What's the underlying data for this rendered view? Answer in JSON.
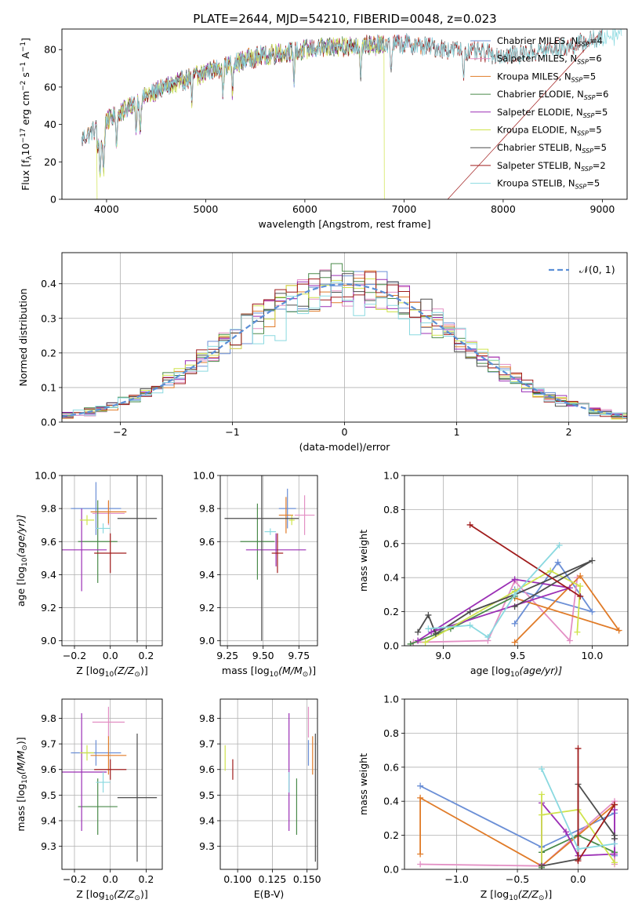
{
  "title": "PLATE=2644, MJD=54210, FIBERID=0048, z=0.023",
  "colors": {
    "Chabrier MILES": "#6b8fd6",
    "Salpeter MILES": "#e38fc4",
    "Kroupa MILES": "#e07b28",
    "Chabrier ELODIE": "#4a8a4a",
    "Salpeter ELODIE": "#9b2fb5",
    "Kroupa ELODIE": "#cfe34c",
    "Chabrier STELIB": "#4d4d4d",
    "Salpeter STELIB": "#a01c1c",
    "Kroupa STELIB": "#8ad9e0"
  },
  "chart_data": [
    {
      "id": "spectrum",
      "type": "line",
      "xlabel": "wavelength [Angstrom, rest frame]",
      "ylabel_parts": [
        "Flux [f",
        "λ",
        "10",
        "−17",
        " erg cm",
        "−2",
        " s",
        "−1",
        " A",
        "−1",
        "]"
      ],
      "xlim": [
        3550,
        9250
      ],
      "ylim": [
        0,
        91
      ],
      "xticks": [
        4000,
        5000,
        6000,
        7000,
        8000,
        9000
      ],
      "yticks": [
        0,
        20,
        40,
        60,
        80
      ],
      "grid": false,
      "legend_position": "upper right",
      "legend": [
        {
          "model": "Chabrier MILES",
          "n": 4
        },
        {
          "model": "Salpeter MILES",
          "n": 6
        },
        {
          "model": "Kroupa MILES",
          "n": 5
        },
        {
          "model": "Chabrier ELODIE",
          "n": 6
        },
        {
          "model": "Salpeter ELODIE",
          "n": 5
        },
        {
          "model": "Kroupa ELODIE",
          "n": 5
        },
        {
          "model": "Chabrier STELIB",
          "n": 5
        },
        {
          "model": "Salpeter STELIB",
          "n": 2
        },
        {
          "model": "Kroupa STELIB",
          "n": 5
        }
      ],
      "series_range": [
        {
          "model": "Chabrier MILES",
          "x": [
            3750,
            7450
          ]
        },
        {
          "model": "Salpeter MILES",
          "x": [
            3750,
            7450
          ]
        },
        {
          "model": "Kroupa MILES",
          "x": [
            3750,
            7450
          ]
        },
        {
          "model": "Chabrier ELODIE",
          "x": [
            3900,
            6800
          ]
        },
        {
          "model": "Salpeter ELODIE",
          "x": [
            3900,
            6800
          ]
        },
        {
          "model": "Kroupa ELODIE",
          "x": [
            3900,
            6800
          ]
        },
        {
          "model": "Chabrier STELIB",
          "x": [
            3750,
            9000
          ]
        },
        {
          "model": "Salpeter STELIB",
          "x": [
            3750,
            9000
          ]
        },
        {
          "model": "Kroupa STELIB",
          "x": [
            3750,
            9200
          ]
        }
      ],
      "continuum_anchors": {
        "x": [
          3750,
          4000,
          4500,
          5000,
          5500,
          6000,
          6500,
          7000,
          7500,
          8000,
          8500,
          9000,
          9250
        ],
        "y": [
          32,
          42,
          58,
          68,
          76,
          80,
          82,
          83,
          80,
          77,
          80,
          86,
          90
        ]
      }
    },
    {
      "id": "residuals",
      "type": "step",
      "xlabel": "(data-model)/error",
      "ylabel": "Normed distribution",
      "xlim": [
        -2.52,
        2.52
      ],
      "ylim": [
        0,
        0.49
      ],
      "xticks": [
        -2,
        -1,
        0,
        1,
        2
      ],
      "yticks": [
        0.0,
        0.1,
        0.2,
        0.3,
        0.4
      ],
      "grid": true,
      "legend_position": "upper right",
      "legend_label": "𝒩(0, 1)",
      "reference_curve": {
        "type": "gaussian",
        "mean": 0,
        "sigma": 1
      },
      "bin_width": 0.1
    },
    {
      "id": "age-vs-Z",
      "type": "errorbar",
      "xlabel_parts": [
        "Z [log",
        "10",
        "(Z/Z",
        "⊙",
        ")]"
      ],
      "ylabel_parts": [
        "age  [log",
        "10",
        "(age/yr)]"
      ],
      "xlim": [
        -0.27,
        0.29
      ],
      "ylim": [
        8.97,
        10.0
      ],
      "xticks": [
        -0.2,
        0.0,
        0.2
      ],
      "yticks": [
        9.0,
        9.2,
        9.4,
        9.6,
        9.8,
        10.0
      ],
      "grid": true,
      "points": [
        {
          "model": "Chabrier MILES",
          "x": -0.08,
          "y": 9.8,
          "xerr": 0.14,
          "yerr": 0.16
        },
        {
          "model": "Salpeter MILES",
          "x": -0.01,
          "y": 9.77,
          "xerr": 0.09,
          "yerr": 0.07
        },
        {
          "model": "Kroupa MILES",
          "x": -0.01,
          "y": 9.78,
          "xerr": 0.1,
          "yerr": 0.07
        },
        {
          "model": "Chabrier ELODIE",
          "x": -0.07,
          "y": 9.6,
          "xerr": 0.11,
          "yerr": 0.25
        },
        {
          "model": "Salpeter ELODIE",
          "x": -0.16,
          "y": 9.55,
          "xerr": 0.14,
          "yerr": 0.25
        },
        {
          "model": "Kroupa ELODIE",
          "x": -0.13,
          "y": 9.73,
          "xerr": 0.04,
          "yerr": 0.03
        },
        {
          "model": "Chabrier STELIB",
          "x": 0.15,
          "y": 9.74,
          "xerr": 0.11,
          "yerr": 0.75
        },
        {
          "model": "Salpeter STELIB",
          "x": 0.0,
          "y": 9.53,
          "xerr": 0.09,
          "yerr": 0.12
        },
        {
          "model": "Kroupa STELIB",
          "x": -0.04,
          "y": 9.68,
          "xerr": 0.04,
          "yerr": 0.03
        }
      ]
    },
    {
      "id": "age-vs-mass",
      "type": "errorbar",
      "xlabel_parts": [
        "mass [log",
        "10",
        "(M/M",
        "⊙",
        ")]"
      ],
      "ylabel": "",
      "xlim": [
        9.2,
        9.88
      ],
      "ylim": [
        8.97,
        10.0
      ],
      "xticks": [
        9.25,
        9.5,
        9.75
      ],
      "yticks": [
        9.0,
        9.2,
        9.4,
        9.6,
        9.8,
        10.0
      ],
      "grid": true,
      "points": [
        {
          "model": "Chabrier MILES",
          "x": 9.67,
          "y": 9.8,
          "xerr": 0.06,
          "yerr": 0.12
        },
        {
          "model": "Salpeter MILES",
          "x": 9.79,
          "y": 9.76,
          "xerr": 0.07,
          "yerr": 0.12
        },
        {
          "model": "Kroupa MILES",
          "x": 9.66,
          "y": 9.76,
          "xerr": 0.05,
          "yerr": 0.11
        },
        {
          "model": "Chabrier ELODIE",
          "x": 9.46,
          "y": 9.6,
          "xerr": 0.12,
          "yerr": 0.23
        },
        {
          "model": "Salpeter ELODIE",
          "x": 9.59,
          "y": 9.55,
          "xerr": 0.21,
          "yerr": 0.1
        },
        {
          "model": "Kroupa ELODIE",
          "x": 9.7,
          "y": 9.73,
          "xerr": 0.02,
          "yerr": 0.03
        },
        {
          "model": "Chabrier STELIB",
          "x": 9.49,
          "y": 9.74,
          "xerr": 0.26,
          "yerr": 0.74
        },
        {
          "model": "Salpeter STELIB",
          "x": 9.6,
          "y": 9.53,
          "xerr": 0.04,
          "yerr": 0.12
        },
        {
          "model": "Kroupa STELIB",
          "x": 9.55,
          "y": 9.66,
          "xerr": 0.04,
          "yerr": 0.02
        }
      ]
    },
    {
      "id": "mass-weight-vs-age",
      "type": "line",
      "xlabel_parts": [
        "age  [log",
        "10",
        "(age/yr)]"
      ],
      "ylabel": "mass weight",
      "xlim": [
        8.74,
        10.24
      ],
      "ylim": [
        0,
        1.0
      ],
      "xticks": [
        9.0,
        9.5,
        10.0
      ],
      "yticks": [
        0.0,
        0.2,
        0.4,
        0.6,
        0.8,
        1.0
      ],
      "grid": true,
      "series": [
        {
          "model": "Chabrier MILES",
          "x": [
            9.48,
            9.77,
            10.0,
            9.48
          ],
          "y": [
            0.13,
            0.49,
            0.2,
            0.33
          ]
        },
        {
          "model": "Salpeter MILES",
          "x": [
            8.8,
            9.3,
            9.48,
            9.85,
            9.9
          ],
          "y": [
            0.02,
            0.03,
            0.38,
            0.03,
            0.4
          ]
        },
        {
          "model": "Kroupa MILES",
          "x": [
            9.48,
            9.92,
            10.18,
            9.48
          ],
          "y": [
            0.02,
            0.41,
            0.09,
            0.28
          ]
        },
        {
          "model": "Chabrier ELODIE",
          "x": [
            8.78,
            9.05,
            9.48
          ],
          "y": [
            0.01,
            0.1,
            0.29
          ]
        },
        {
          "model": "Salpeter ELODIE",
          "x": [
            8.83,
            9.48,
            9.85,
            8.92
          ],
          "y": [
            0.03,
            0.39,
            0.34,
            0.08
          ]
        },
        {
          "model": "Kroupa ELODIE",
          "x": [
            8.88,
            9.48,
            9.72,
            9.92,
            9.9
          ],
          "y": [
            0.02,
            0.32,
            0.44,
            0.35,
            0.08
          ]
        },
        {
          "model": "Chabrier STELIB",
          "x": [
            8.83,
            8.9,
            8.95,
            9.18,
            9.48,
            10.0,
            9.48
          ],
          "y": [
            0.08,
            0.18,
            0.07,
            0.2,
            0.3,
            0.5,
            0.23
          ]
        },
        {
          "model": "Salpeter STELIB",
          "x": [
            9.18,
            9.92
          ],
          "y": [
            0.71,
            0.29
          ]
        },
        {
          "model": "Kroupa STELIB",
          "x": [
            8.9,
            9.18,
            9.3,
            9.48,
            9.78
          ],
          "y": [
            0.1,
            0.12,
            0.05,
            0.3,
            0.59
          ]
        }
      ]
    },
    {
      "id": "mass-vs-Z",
      "type": "errorbar",
      "xlabel_parts": [
        "Z [log",
        "10",
        "(Z/Z",
        "⊙",
        ")]"
      ],
      "ylabel_parts": [
        "mass [log",
        "10",
        "(M/M",
        "⊙",
        ")]"
      ],
      "xlim": [
        -0.27,
        0.29
      ],
      "ylim": [
        9.21,
        9.875
      ],
      "xticks": [
        -0.2,
        0.0,
        0.2
      ],
      "yticks": [
        9.3,
        9.4,
        9.5,
        9.6,
        9.7,
        9.8
      ],
      "grid": true,
      "points": [
        {
          "model": "Chabrier MILES",
          "x": -0.08,
          "y": 9.665,
          "xerr": 0.14,
          "yerr": 0.05
        },
        {
          "model": "Salpeter MILES",
          "x": -0.01,
          "y": 9.785,
          "xerr": 0.09,
          "yerr": 0.06
        },
        {
          "model": "Kroupa MILES",
          "x": -0.01,
          "y": 9.655,
          "xerr": 0.1,
          "yerr": 0.075
        },
        {
          "model": "Chabrier ELODIE",
          "x": -0.07,
          "y": 9.455,
          "xerr": 0.11,
          "yerr": 0.11
        },
        {
          "model": "Salpeter ELODIE",
          "x": -0.16,
          "y": 9.59,
          "xerr": 0.14,
          "yerr": 0.23
        },
        {
          "model": "Kroupa ELODIE",
          "x": -0.13,
          "y": 9.665,
          "xerr": 0.04,
          "yerr": 0.03
        },
        {
          "model": "Chabrier STELIB",
          "x": 0.15,
          "y": 9.49,
          "xerr": 0.11,
          "yerr": 0.25
        },
        {
          "model": "Salpeter STELIB",
          "x": 0.0,
          "y": 9.6,
          "xerr": 0.09,
          "yerr": 0.04
        },
        {
          "model": "Kroupa STELIB",
          "x": -0.04,
          "y": 9.55,
          "xerr": 0.04,
          "yerr": 0.04
        }
      ]
    },
    {
      "id": "mass-vs-EBV",
      "type": "errorbar",
      "xlabel": "E(B-V)",
      "ylabel": "",
      "xlim": [
        0.0875,
        0.1575
      ],
      "ylim": [
        9.21,
        9.875
      ],
      "xticks": [
        0.1,
        0.125,
        0.15
      ],
      "yticks": [
        9.3,
        9.4,
        9.5,
        9.6,
        9.7,
        9.8
      ],
      "grid": true,
      "points": [
        {
          "model": "Chabrier MILES",
          "x": 0.151,
          "y": 9.665,
          "yerr": 0.05
        },
        {
          "model": "Salpeter MILES",
          "x": 0.151,
          "y": 9.785,
          "yerr": 0.06
        },
        {
          "model": "Kroupa MILES",
          "x": 0.154,
          "y": 9.655,
          "yerr": 0.075
        },
        {
          "model": "Chabrier ELODIE",
          "x": 0.1425,
          "y": 9.455,
          "yerr": 0.11
        },
        {
          "model": "Salpeter ELODIE",
          "x": 0.137,
          "y": 9.59,
          "yerr": 0.23
        },
        {
          "model": "Kroupa ELODIE",
          "x": 0.091,
          "y": 9.645,
          "yerr": 0.05
        },
        {
          "model": "Chabrier STELIB",
          "x": 0.156,
          "y": 9.49,
          "yerr": 0.25
        },
        {
          "model": "Salpeter STELIB",
          "x": 0.0965,
          "y": 9.6,
          "yerr": 0.04
        },
        {
          "model": "Kroupa STELIB",
          "x": 0.137,
          "y": 9.55,
          "yerr": 0.04
        }
      ]
    },
    {
      "id": "mass-weight-vs-Z",
      "type": "line",
      "xlabel_parts": [
        "Z [log",
        "10",
        "(Z/Z",
        "⊙",
        ")]"
      ],
      "ylabel": "mass weight",
      "xlim": [
        -1.43,
        0.41
      ],
      "ylim": [
        0,
        1.0
      ],
      "xticks": [
        -1.0,
        -0.5,
        0.0
      ],
      "yticks": [
        0.0,
        0.2,
        0.4,
        0.6,
        0.8,
        1.0
      ],
      "grid": true,
      "series": [
        {
          "model": "Chabrier MILES",
          "x": [
            -1.3,
            -0.3,
            0.3,
            0.3
          ],
          "y": [
            0.49,
            0.13,
            0.33,
            0.08
          ]
        },
        {
          "model": "Salpeter MILES",
          "x": [
            -1.3,
            -0.3,
            0.3,
            0.3
          ],
          "y": [
            0.03,
            0.02,
            0.4,
            0.03
          ]
        },
        {
          "model": "Kroupa MILES",
          "x": [
            -1.3,
            -1.3,
            -0.3,
            0.3
          ],
          "y": [
            0.09,
            0.42,
            0.02,
            0.38
          ]
        },
        {
          "model": "Chabrier ELODIE",
          "x": [
            -0.3,
            -0.3,
            0.0,
            0.3
          ],
          "y": [
            0.01,
            0.1,
            0.2,
            0.1
          ]
        },
        {
          "model": "Salpeter ELODIE",
          "x": [
            -0.3,
            -0.3,
            -0.1,
            0.0,
            0.3,
            0.3
          ],
          "y": [
            0.03,
            0.39,
            0.22,
            0.08,
            0.09,
            0.35
          ]
        },
        {
          "model": "Kroupa ELODIE",
          "x": [
            -0.3,
            -0.3,
            -0.3,
            0.0,
            0.3
          ],
          "y": [
            0.02,
            0.44,
            0.32,
            0.35,
            0.04
          ]
        },
        {
          "model": "Chabrier STELIB",
          "x": [
            -0.3,
            0.0,
            0.0,
            0.3,
            0.3
          ],
          "y": [
            0.02,
            0.06,
            0.5,
            0.2,
            0.18
          ]
        },
        {
          "model": "Salpeter STELIB",
          "x": [
            0.0,
            0.0,
            0.3
          ],
          "y": [
            0.71,
            0.05,
            0.38
          ]
        },
        {
          "model": "Kroupa STELIB",
          "x": [
            -0.3,
            0.0,
            0.3
          ],
          "y": [
            0.59,
            0.12,
            0.15
          ]
        }
      ]
    }
  ]
}
